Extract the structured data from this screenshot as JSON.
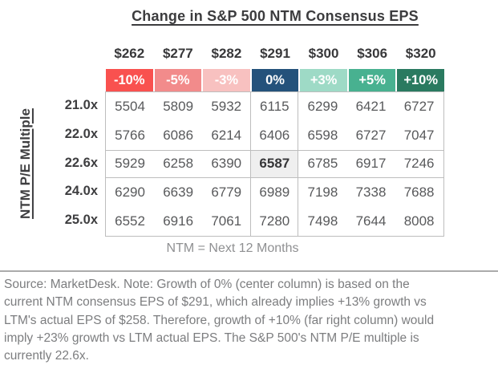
{
  "title": "Change in S&P 500 NTM Consensus EPS",
  "chart_data": {
    "type": "table",
    "title": "Change in S&P 500 NTM Consensus EPS",
    "ylabel": "NTM P/E Multiple",
    "eps_levels": [
      "$262",
      "$277",
      "$282",
      "$291",
      "$300",
      "$306",
      "$320"
    ],
    "growth_labels": [
      "-10%",
      "-5%",
      "-3%",
      "0%",
      "+3%",
      "+5%",
      "+10%"
    ],
    "growth_colors": [
      "#f9514f",
      "#f28b8b",
      "#f8c1c0",
      "#24527b",
      "#9edac6",
      "#48b190",
      "#2a7a60"
    ],
    "pe_multiples": [
      "21.0x",
      "22.0x",
      "22.6x",
      "24.0x",
      "25.0x"
    ],
    "rows": [
      {
        "multiple": "21.0x",
        "values": [
          "5504",
          "5809",
          "5932",
          "6115",
          "6299",
          "6421",
          "6727"
        ]
      },
      {
        "multiple": "22.0x",
        "values": [
          "5766",
          "6086",
          "6214",
          "6406",
          "6598",
          "6727",
          "7047"
        ]
      },
      {
        "multiple": "22.6x",
        "values": [
          "5929",
          "6258",
          "6390",
          "6587",
          "6785",
          "6917",
          "7246"
        ]
      },
      {
        "multiple": "24.0x",
        "values": [
          "6290",
          "6639",
          "6779",
          "6989",
          "7198",
          "7338",
          "7688"
        ]
      },
      {
        "multiple": "25.0x",
        "values": [
          "6552",
          "6916",
          "7061",
          "7280",
          "7498",
          "7644",
          "8008"
        ]
      }
    ],
    "highlight": {
      "row_index": 2,
      "col_index": 3,
      "row_label": "22.6x",
      "col_label": "$291",
      "value": "6587",
      "background": "#efefef"
    },
    "caption": "NTM = Next 12 Months"
  },
  "footer": {
    "note": "Source: MarketDesk. Note: Growth of 0% (center column) is based on the\ncurrent NTM consensus EPS of $291, which already implies +13% growth vs\nLTM's actual EPS of $258. Therefore, growth of +10% (far right column) would\nimply +23% growth vs LTM actual EPS. The S&P 500's NTM P/E multiple is\ncurrently 22.6x."
  }
}
